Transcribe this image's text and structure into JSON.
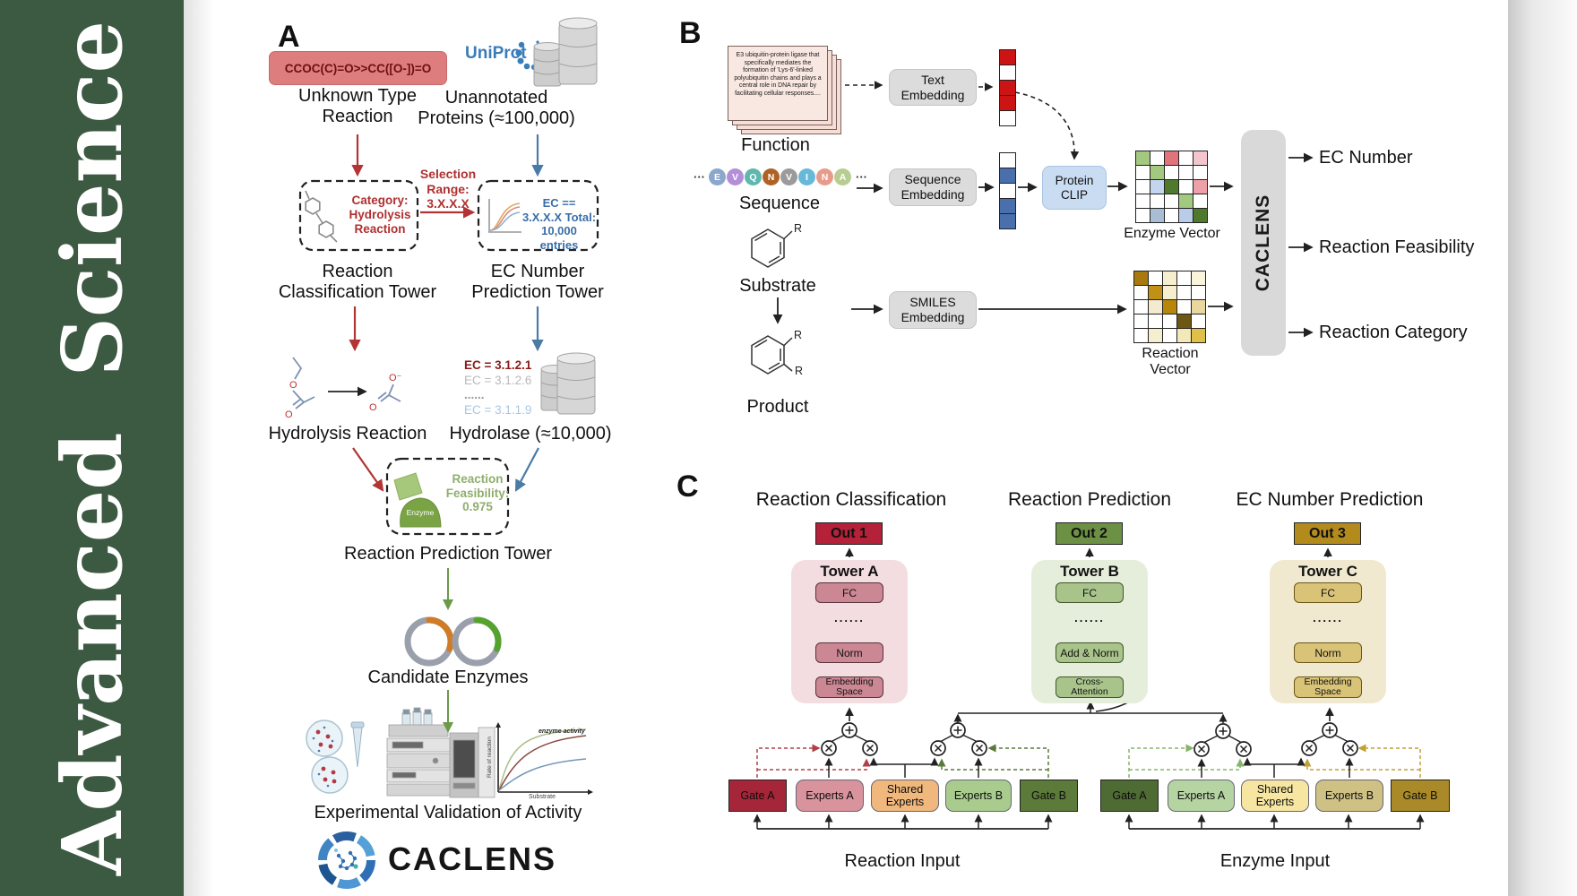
{
  "journal": {
    "name": "Advanced Science"
  },
  "panelA": {
    "label": "A",
    "smiles": "CCOC(C)=O>>CC([O-])=O",
    "unknown_type": "Unknown Type Reaction",
    "uniprot": "UniProt",
    "unannotated": "Unannotated Proteins (≈100,000)",
    "selection_range": "Selection Range: 3.X.X.X",
    "category": "Category: Hydrolysis Reaction",
    "ec_filter": "EC == 3.X.X.X Total: 10,000 entries",
    "tower_classification": "Reaction Classification Tower",
    "tower_ec": "EC Number Prediction Tower",
    "hydrolysis": "Hydrolysis Reaction",
    "ec_list": [
      {
        "text": "EC = 3.1.2.1",
        "color": "#8b1a1a",
        "bold": true
      },
      {
        "text": "EC = 3.1.2.6",
        "color": "#b9b9b9",
        "bold": false
      },
      {
        "text": "......",
        "color": "#9a9a9a",
        "bold": true
      },
      {
        "text": "EC = 3.1.1.9",
        "color": "#a9c6e4",
        "bold": false
      }
    ],
    "hydrolase": "Hydrolase (≈10,000)",
    "enzyme_badge": "Enzyme",
    "feasibility": "Reaction Feasibility: 0.975",
    "tower_prediction": "Reaction Prediction Tower",
    "candidates": "Candidate Enzymes",
    "activity_plot": {
      "ylabel": "Rate of reaction",
      "xlabel": "Substrate",
      "annotation": "enzyme activity"
    },
    "validation": "Experimental Validation of Activity",
    "brand": "CACLENS",
    "atoms": {
      "o": "O",
      "ominus": "O⁻"
    }
  },
  "panelB": {
    "label": "B",
    "function_card": "E3 ubiquitin-protein ligase that specifically mediates the formation of 'Lys-6'-linked polyubiquitin chains and plays a central role in DNA repair by facilitating cellular responses....",
    "function_label": "Function",
    "ellipsis": "···",
    "residues": [
      {
        "letter": "E",
        "color": "#8ba7cb"
      },
      {
        "letter": "V",
        "color": "#b48fd9"
      },
      {
        "letter": "Q",
        "color": "#5fb7ae"
      },
      {
        "letter": "N",
        "color": "#b06226"
      },
      {
        "letter": "V",
        "color": "#9b9b9b"
      },
      {
        "letter": "I",
        "color": "#67b9d9"
      },
      {
        "letter": "N",
        "color": "#e99b8b"
      },
      {
        "letter": "A",
        "color": "#b7cd91"
      }
    ],
    "sequence_label": "Sequence",
    "substrate_label": "Substrate",
    "product_label": "Product",
    "r_group": "R",
    "text_embedding": "Text Embedding",
    "sequence_embedding": "Sequence Embedding",
    "smiles_embedding": "SMILES Embedding",
    "protein_clip": "Protein CLIP",
    "text_vector": [
      "#cc1414",
      "#ffffff",
      "#cc1414",
      "#cc1414",
      "#ffffff"
    ],
    "sequence_vector": [
      "#ffffff",
      "#4a6fad",
      "#ffffff",
      "#4a6fad",
      "#4a6fad"
    ],
    "enzyme_vector": {
      "label": "Enzyme Vector",
      "cells": [
        [
          "#a3c87f",
          "#ffffff",
          "#e0737c",
          "#ffffff",
          "#f2c6cc"
        ],
        [
          "#ffffff",
          "#a3c87f",
          "#ffffff",
          "#ffffff",
          "#ffffff"
        ],
        [
          "#ffffff",
          "#c5d5ed",
          "#4f7a2e",
          "#ffffff",
          "#eda0a8"
        ],
        [
          "#ffffff",
          "#ffffff",
          "#ffffff",
          "#a3c87f",
          "#ffffff"
        ],
        [
          "#ffffff",
          "#a9bdd4",
          "#ffffff",
          "#b9cce8",
          "#4f7a2e"
        ]
      ]
    },
    "reaction_vector": {
      "label": "Reaction Vector",
      "cells": [
        [
          "#a8790e",
          "#ffffff",
          "#f6efcf",
          "#ffffff",
          "#fbf4dd"
        ],
        [
          "#ffffff",
          "#c09114",
          "#f6efcf",
          "#ffffff",
          "#ffffff"
        ],
        [
          "#ffffff",
          "#f3ead0",
          "#b8860b",
          "#ffffff",
          "#ead7a0"
        ],
        [
          "#ffffff",
          "#ffffff",
          "#ffffff",
          "#6e5712",
          "#ffffff"
        ],
        [
          "#ffffff",
          "#f6efcf",
          "#ffffff",
          "#f3e8b8",
          "#dfc14a"
        ]
      ]
    },
    "caclens": "CACLENS",
    "outputs": [
      "EC Number",
      "Reaction Feasibility",
      "Reaction Category"
    ]
  },
  "panelC": {
    "label": "C",
    "towers": [
      {
        "heading": "Reaction Classification",
        "out": "Out 1",
        "title": "Tower A",
        "boxes": [
          "FC",
          "......",
          "Norm",
          "Embedding Space"
        ],
        "panel_bg": "#f4dde0",
        "box_bg": "#cb8793",
        "box_border": "#57333b",
        "out_bg": "#b52139"
      },
      {
        "heading": "Reaction Prediction",
        "out": "Out 2",
        "title": "Tower B",
        "boxes": [
          "FC",
          "......",
          "Add & Norm",
          "Cross-Attention"
        ],
        "panel_bg": "#e5eedb",
        "box_bg": "#a9c48b",
        "box_border": "#40552a",
        "out_bg": "#6d9144"
      },
      {
        "heading": "EC Number Prediction",
        "out": "Out 3",
        "title": "Tower C",
        "boxes": [
          "FC",
          "......",
          "Norm",
          "Embedding Space"
        ],
        "panel_bg": "#f0e9cf",
        "box_bg": "#d9c377",
        "box_border": "#6a5718",
        "out_bg": "#b38b1d"
      }
    ],
    "moe": {
      "reaction": {
        "input_label": "Reaction Input",
        "boxes": [
          {
            "label": "Gate A",
            "bg": "#a62639",
            "kind": "gate"
          },
          {
            "label": "Experts A",
            "bg": "#d9939d",
            "kind": "expert"
          },
          {
            "label": "Shared Experts",
            "bg": "#f0b87d",
            "kind": "expert"
          },
          {
            "label": "Experts B",
            "bg": "#a9cc8e",
            "kind": "expert"
          },
          {
            "label": "Gate B",
            "bg": "#5c7b3b",
            "kind": "gate"
          }
        ]
      },
      "enzyme": {
        "input_label": "Enzyme Input",
        "boxes": [
          {
            "label": "Gate A",
            "bg": "#4e6b33",
            "kind": "gate"
          },
          {
            "label": "Experts A",
            "bg": "#b5d4a2",
            "kind": "expert"
          },
          {
            "label": "Shared Experts",
            "bg": "#f7e6a2",
            "kind": "expert"
          },
          {
            "label": "Experts B",
            "bg": "#cfc083",
            "kind": "expert"
          },
          {
            "label": "Gate B",
            "bg": "#aa8a28",
            "kind": "gate"
          }
        ]
      }
    }
  }
}
